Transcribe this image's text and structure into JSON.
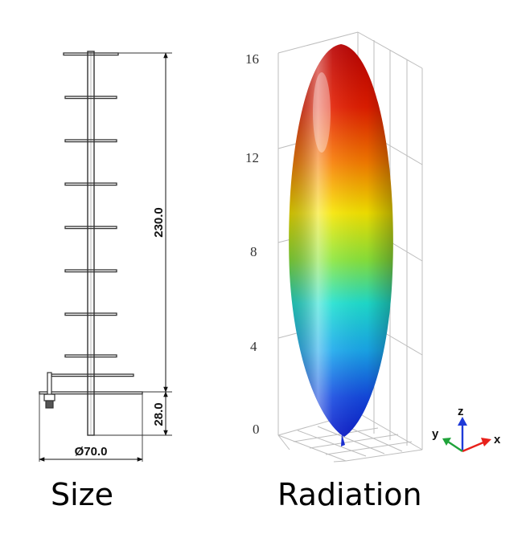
{
  "captions": {
    "size": "Size",
    "radiation": "Radiation"
  },
  "dimensions": {
    "height": "230.0",
    "feed_offset": "28.0",
    "diameter": "Ø70.0"
  },
  "pattern_axis": {
    "ticks": [
      "0",
      "4",
      "8",
      "12",
      "16"
    ]
  },
  "triad": {
    "x": "x",
    "y": "y",
    "z": "z"
  },
  "colors": {
    "x_axis": "#e8211b",
    "y_axis": "#1fa33a",
    "z_axis": "#1e3ad8",
    "lobe_top": "#b80000",
    "lobe_bottom": "#0a1ac8"
  }
}
